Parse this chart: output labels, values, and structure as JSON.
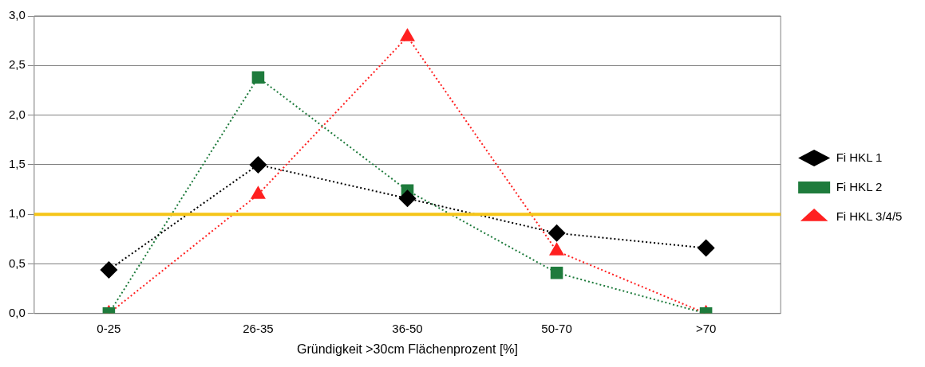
{
  "chart_data": {
    "type": "line",
    "xlabel": "Gründigkeit >30cm Flächenprozent [%]",
    "categories": [
      "0-25",
      "26-35",
      "36-50",
      "50-70",
      ">70"
    ],
    "series": [
      {
        "name": "Fi HKL 1",
        "color": "#000000",
        "marker": "diamond",
        "values": [
          0.44,
          1.5,
          1.16,
          0.81,
          0.66
        ]
      },
      {
        "name": "Fi HKL 2",
        "color": "#1e7b3c",
        "marker": "square",
        "values": [
          0,
          2.38,
          1.24,
          0.41,
          0
        ]
      },
      {
        "name": "Fi HKL 3/4/5",
        "color": "#ff2020",
        "marker": "triangle",
        "values": [
          0,
          1.2,
          2.79,
          0.63,
          0
        ]
      }
    ],
    "ylim": [
      0,
      3
    ],
    "yticks": [
      {
        "value": 0,
        "label": "0,0"
      },
      {
        "value": 0.5,
        "label": "0,5"
      },
      {
        "value": 1,
        "label": "1,0"
      },
      {
        "value": 1.5,
        "label": "1,5"
      },
      {
        "value": 2,
        "label": "2,0"
      },
      {
        "value": 2.5,
        "label": "2,5"
      },
      {
        "value": 3,
        "label": "3,0"
      }
    ],
    "grid": "y",
    "legend": "right",
    "line_style": "dotted",
    "ref_lines": [
      {
        "axis": "y",
        "value": 1,
        "color": "#f5c518"
      }
    ]
  }
}
